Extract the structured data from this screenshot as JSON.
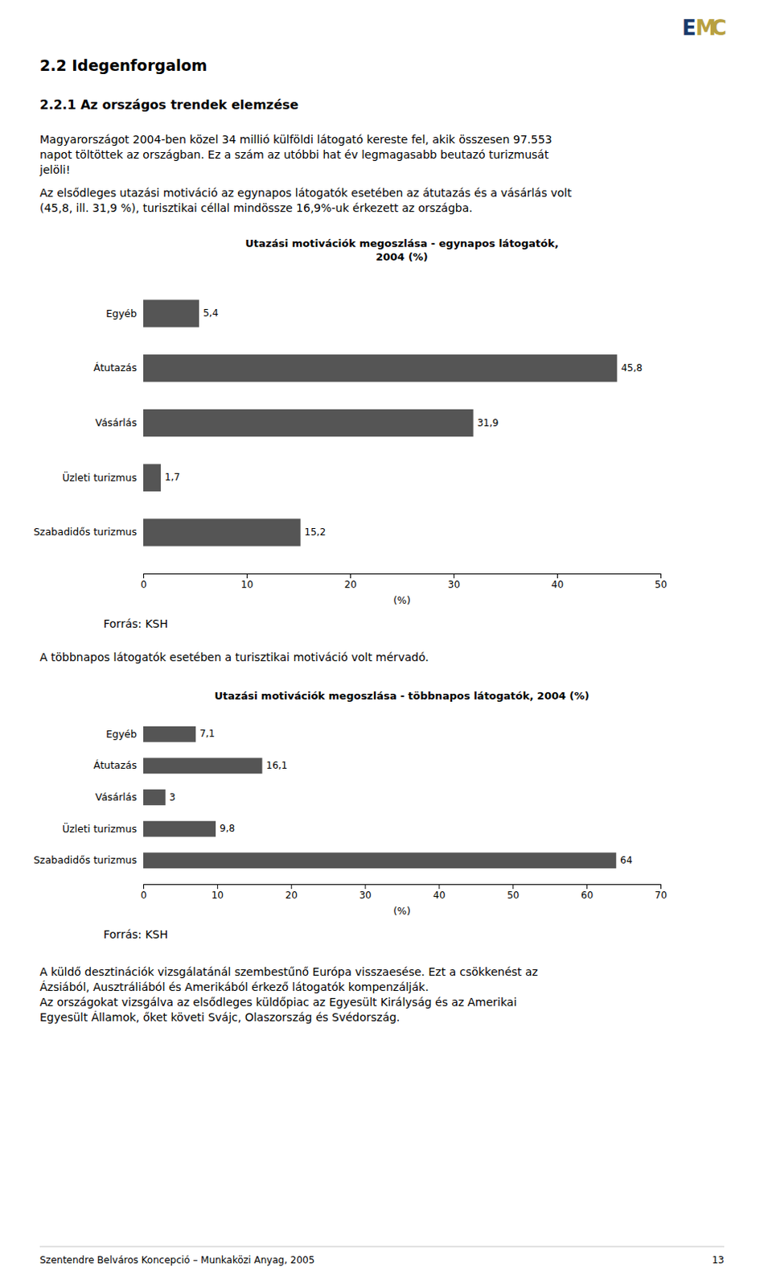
{
  "page": {
    "background_color": "#ffffff",
    "logo": [
      {
        "text": "E",
        "color": "#1a3a6b"
      },
      {
        "text": "M",
        "color": "#b8a040"
      },
      {
        "text": "C",
        "color": "#b8a040"
      }
    ],
    "headings": [
      "2.2  Idegenforgalom",
      "2.2.1  Az országos trendek elemzése"
    ],
    "intro": [
      [
        "Magyarországot 2004-ben közel 34 millió külföldi látogató kereste fel, akik összesen 97.553",
        "napot töltöttek az országban. Ez a szám az utóbbi hat év legmagasabb beutazó turizmusát",
        "jelöli!"
      ],
      [
        "Az elsődleges utazási motiváció az egynapos látogatók esetében az átutazás és a vásárlás volt",
        "(45,8, ill. 31,9 %), turisztikai céllal mindössze 16,9%-uk érkezett az országba."
      ]
    ],
    "between_text": "A többnapos látogatók esetében a turisztikai motiváció volt mérvadó.",
    "closing": [
      [
        "A küldő desztinációk vizsgálatánál szembestűnő Európa visszaesése. Ezt a csökkenést az",
        "Ázsiából, Ausztráliából és Amerikából érkező látogatók kompenzálják."
      ],
      [
        "Az országokat vizsgálva az elsődleges küldőpiac az Egyesült Királyság és az Amerikai",
        "Egyesült Államok, őket követi Svájc, Olaszország és Svédország."
      ]
    ],
    "footer_left": "Szentendre Belváros Koncepció – Munkaközi Anyag, 2005",
    "footer_right": "13"
  },
  "chart_data": [
    {
      "type": "bar",
      "orientation": "horizontal",
      "title": "Utazási motivációk megoszlása - egynapos látogatók,\n2004 (%)",
      "categories": [
        "Egyéb",
        "Átutazás",
        "Vásárlás",
        "Üzleti turizmus",
        "Szabadidős turizmus"
      ],
      "values": [
        5.4,
        45.8,
        31.9,
        1.7,
        15.2
      ],
      "value_labels": [
        "5,4",
        "45,8",
        "31,9",
        "1,7",
        "15,2"
      ],
      "data_labels": true,
      "color": "#555555",
      "xlim": [
        0,
        50
      ],
      "xticks": [
        0,
        10,
        20,
        30,
        40,
        50
      ],
      "xlabel": "(%)",
      "grid": false,
      "annotations": [
        "Forrás: KSH"
      ]
    },
    {
      "type": "bar",
      "orientation": "horizontal",
      "title": "Utazási motivációk megoszlása - többnapos látogatók, 2004 (%)",
      "categories": [
        "Egyéb",
        "Átutazás",
        "Vásárlás",
        "Üzleti turizmus",
        "Szabadidős turizmus"
      ],
      "values": [
        7.1,
        16.1,
        3,
        9.8,
        64
      ],
      "value_labels": [
        "7,1",
        "16,1",
        "3",
        "9,8",
        "64"
      ],
      "data_labels": true,
      "color": "#555555",
      "xlim": [
        0,
        70
      ],
      "xticks": [
        0,
        10,
        20,
        30,
        40,
        50,
        60,
        70
      ],
      "xlabel": "(%)",
      "grid": false,
      "annotations": [
        "Forrás: KSH"
      ]
    }
  ]
}
